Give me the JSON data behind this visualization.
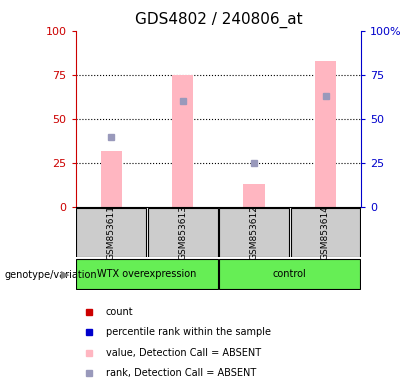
{
  "title": "GDS4802 / 240806_at",
  "samples": [
    "GSM853611",
    "GSM853613",
    "GSM853612",
    "GSM853614"
  ],
  "pink_bar_values": [
    32,
    75,
    13,
    83
  ],
  "blue_square_values": [
    40,
    60,
    25,
    63
  ],
  "ylim": [
    0,
    100
  ],
  "left_yticks": [
    0,
    25,
    50,
    75,
    100
  ],
  "right_yticks": [
    0,
    25,
    50,
    75,
    100
  ],
  "left_yticklabels": [
    "0",
    "25",
    "50",
    "75",
    "100"
  ],
  "right_yticklabels": [
    "0",
    "25",
    "50",
    "75",
    "100%"
  ],
  "left_ytick_color": "#cc0000",
  "right_ytick_color": "#0000cc",
  "pink_bar_color": "#FFB6C1",
  "blue_square_color": "#9999bb",
  "legend_items": [
    {
      "label": "count",
      "color": "#cc0000"
    },
    {
      "label": "percentile rank within the sample",
      "color": "#0000cc"
    },
    {
      "label": "value, Detection Call = ABSENT",
      "color": "#FFB6C1"
    },
    {
      "label": "rank, Detection Call = ABSENT",
      "color": "#9999bb"
    }
  ],
  "sample_bg_color": "#cccccc",
  "group1_label": "WTX overexpression",
  "group2_label": "control",
  "group_color": "#66ee55",
  "group_label_text": "genotype/variation",
  "title_fontsize": 11,
  "bar_width": 0.3
}
